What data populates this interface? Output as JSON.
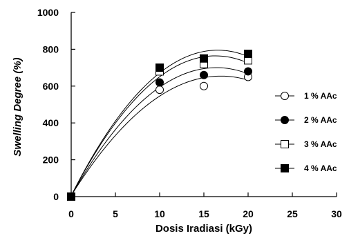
{
  "chart_data": {
    "type": "scatter",
    "xlabel": "Dosis Iradiasi (kGy)",
    "ylabel": "Swelling Degree (%)",
    "xlim": [
      0,
      30
    ],
    "ylim": [
      0,
      1000
    ],
    "x_ticks": [
      0,
      5,
      10,
      15,
      20,
      25,
      30
    ],
    "y_ticks": [
      0,
      200,
      400,
      600,
      800,
      1000
    ],
    "x_tick_labels": [
      "0",
      "5",
      "10",
      "15",
      "20",
      "25",
      "30"
    ],
    "y_tick_labels": [
      "0",
      "200",
      "400",
      "600",
      "800",
      "1000"
    ],
    "grid": false,
    "legend_position": "right",
    "trendline": "polynomial",
    "series": [
      {
        "name": "1 % AAc",
        "marker": "circle-open",
        "color": "#000000",
        "x": [
          0,
          10,
          15,
          20
        ],
        "values": [
          0,
          580,
          600,
          650
        ]
      },
      {
        "name": "2 % AAc",
        "marker": "circle-filled",
        "color": "#000000",
        "x": [
          0,
          10,
          15,
          20
        ],
        "values": [
          0,
          620,
          660,
          680
        ]
      },
      {
        "name": "3 % AAc",
        "marker": "square-open",
        "color": "#000000",
        "x": [
          0,
          10,
          15,
          20
        ],
        "values": [
          0,
          680,
          720,
          740
        ]
      },
      {
        "name": "4 % AAc",
        "marker": "square-filled",
        "color": "#000000",
        "x": [
          0,
          10,
          15,
          20
        ],
        "values": [
          0,
          700,
          750,
          775
        ]
      }
    ]
  }
}
